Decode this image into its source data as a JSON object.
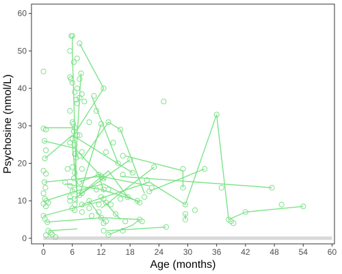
{
  "chart_data": {
    "type": "scatter",
    "xlabel": "Age (months)",
    "ylabel": "Psychosine (nmol/L)",
    "xlim": [
      -2.5,
      60.5
    ],
    "ylim": [
      -1.5,
      62.5
    ],
    "x_ticks": [
      0,
      6,
      12,
      18,
      24,
      30,
      36,
      42,
      48,
      54,
      60
    ],
    "y_ticks": [
      0,
      10,
      20,
      30,
      40,
      50,
      60
    ],
    "grid": false,
    "legend": "none",
    "colors": {
      "points": "#7ee08a",
      "lines": "#6fe07b",
      "reference": "#d9d9d9",
      "axis": "#333333",
      "text": "#4d4d4d"
    },
    "reference_line": {
      "y": 0,
      "x_range": [
        0,
        60
      ]
    },
    "points": [
      [
        0.0,
        44.5
      ],
      [
        0.0,
        29.3
      ],
      [
        0.5,
        29.0
      ],
      [
        0.2,
        26.0
      ],
      [
        0.5,
        23.5
      ],
      [
        0.3,
        21.3
      ],
      [
        0.0,
        18.0
      ],
      [
        0.5,
        17.2
      ],
      [
        0.2,
        15.0
      ],
      [
        0.4,
        13.5
      ],
      [
        0.0,
        12.0
      ],
      [
        0.3,
        10.5
      ],
      [
        0.6,
        10.0
      ],
      [
        1.0,
        9.5
      ],
      [
        0.0,
        9.2
      ],
      [
        0.5,
        8.5
      ],
      [
        0.0,
        6.0
      ],
      [
        0.3,
        5.2
      ],
      [
        0.8,
        4.3
      ],
      [
        1.0,
        2.0
      ],
      [
        1.5,
        1.5
      ],
      [
        1.8,
        1.0
      ],
      [
        0.5,
        0.8
      ],
      [
        2.5,
        0.3
      ],
      [
        5.8,
        54.0
      ],
      [
        6.0,
        54.0
      ],
      [
        5.5,
        50.0
      ],
      [
        6.3,
        47.0
      ],
      [
        5.5,
        43.0
      ],
      [
        5.7,
        42.5
      ],
      [
        6.0,
        41.5
      ],
      [
        6.5,
        39.0
      ],
      [
        6.8,
        37.0
      ],
      [
        5.5,
        34.0
      ],
      [
        6.0,
        31.0
      ],
      [
        6.2,
        30.5
      ],
      [
        6.5,
        29.5
      ],
      [
        6.3,
        28.5
      ],
      [
        7.0,
        27.5
      ],
      [
        6.0,
        26.5
      ],
      [
        6.5,
        25.0
      ],
      [
        5.5,
        25.5
      ],
      [
        6.5,
        22.5
      ],
      [
        6.8,
        21.5
      ],
      [
        6.0,
        19.0
      ],
      [
        5.0,
        18.5
      ],
      [
        6.5,
        17.5
      ],
      [
        6.3,
        16.0
      ],
      [
        4.5,
        15.0
      ],
      [
        5.5,
        14.0
      ],
      [
        6.5,
        13.0
      ],
      [
        6.0,
        12.5
      ],
      [
        5.5,
        11.0
      ],
      [
        6.5,
        10.5
      ],
      [
        5.5,
        10.0
      ],
      [
        6.5,
        9.0
      ],
      [
        6.0,
        8.0
      ],
      [
        6.5,
        7.5
      ],
      [
        7.5,
        52.0
      ],
      [
        7.0,
        48.0
      ],
      [
        7.8,
        44.0
      ],
      [
        7.5,
        42.5
      ],
      [
        7.0,
        40.0
      ],
      [
        8.0,
        38.5
      ],
      [
        7.5,
        37.5
      ],
      [
        7.0,
        36.0
      ],
      [
        8.5,
        36.5
      ],
      [
        9.5,
        31.0
      ],
      [
        7.5,
        27.5
      ],
      [
        8.0,
        23.0
      ],
      [
        7.5,
        22.0
      ],
      [
        8.0,
        18.5
      ],
      [
        7.5,
        15.0
      ],
      [
        8.0,
        12.0
      ],
      [
        7.5,
        11.5
      ],
      [
        9.5,
        10.0
      ],
      [
        8.0,
        9.0
      ],
      [
        9.5,
        8.0
      ],
      [
        8.0,
        7.0
      ],
      [
        10.0,
        6.0
      ],
      [
        10.5,
        38.0
      ],
      [
        11.0,
        34.0
      ],
      [
        12.5,
        40.0
      ],
      [
        13.5,
        31.0
      ],
      [
        12.0,
        30.5
      ],
      [
        11.5,
        17.0
      ],
      [
        12.0,
        16.5
      ],
      [
        12.5,
        16.0
      ],
      [
        11.0,
        13.0
      ],
      [
        12.5,
        13.0
      ],
      [
        13.5,
        13.0
      ],
      [
        12.0,
        11.0
      ],
      [
        12.5,
        10.5
      ],
      [
        11.5,
        9.0
      ],
      [
        13.0,
        9.5
      ],
      [
        11.5,
        7.0
      ],
      [
        12.0,
        5.5
      ],
      [
        13.0,
        4.5
      ],
      [
        12.5,
        4.0
      ],
      [
        12.5,
        2.0
      ],
      [
        13.5,
        0.9
      ],
      [
        13.0,
        23.0
      ],
      [
        14.5,
        25.5
      ],
      [
        16.0,
        29.0
      ],
      [
        16.5,
        22.0
      ],
      [
        15.5,
        20.0
      ],
      [
        16.5,
        17.0
      ],
      [
        18.0,
        21.0
      ],
      [
        18.5,
        17.5
      ],
      [
        17.5,
        11.0
      ],
      [
        16.0,
        10.5
      ],
      [
        15.0,
        6.5
      ],
      [
        14.0,
        9.0
      ],
      [
        17.0,
        4.5
      ],
      [
        16.5,
        2.0
      ],
      [
        19.5,
        10.0
      ],
      [
        20.0,
        9.5
      ],
      [
        20.0,
        5.0
      ],
      [
        20.5,
        4.5
      ],
      [
        22.0,
        12.5
      ],
      [
        21.5,
        15.5
      ],
      [
        23.0,
        19.0
      ],
      [
        22.5,
        13.5
      ],
      [
        21.0,
        11.0
      ],
      [
        25.0,
        36.5
      ],
      [
        25.5,
        3.0
      ],
      [
        29.0,
        18.5
      ],
      [
        29.0,
        13.5
      ],
      [
        29.5,
        9.0
      ],
      [
        29.5,
        6.5
      ],
      [
        29.5,
        5.0
      ],
      [
        31.5,
        7.5
      ],
      [
        33.5,
        18.5
      ],
      [
        36.0,
        33.0
      ],
      [
        37.0,
        13.5
      ],
      [
        38.5,
        5.0
      ],
      [
        39.0,
        4.5
      ],
      [
        39.5,
        4.0
      ],
      [
        42.0,
        7.0
      ],
      [
        47.5,
        13.5
      ],
      [
        49.5,
        9.0
      ],
      [
        54.0,
        8.5
      ]
    ],
    "trajectories": [
      [
        [
          6.0,
          54.0
        ],
        [
          6.0,
          49.5
        ],
        [
          6.5,
          29.0
        ],
        [
          7.0,
          9.5
        ]
      ],
      [
        [
          0.0,
          29.5
        ],
        [
          6.5,
          29.5
        ],
        [
          6.0,
          25.0
        ],
        [
          7.0,
          12.0
        ]
      ],
      [
        [
          7.5,
          52.0
        ],
        [
          12.5,
          40.0
        ],
        [
          7.0,
          29.0
        ]
      ],
      [
        [
          7.8,
          44.0
        ],
        [
          7.0,
          27.0
        ],
        [
          6.5,
          16.5
        ]
      ],
      [
        [
          0.0,
          26.0
        ],
        [
          6.5,
          24.0
        ],
        [
          12.0,
          16.5
        ],
        [
          13.0,
          15.5
        ]
      ],
      [
        [
          0.3,
          21.3
        ],
        [
          6.0,
          27.5
        ],
        [
          18.5,
          17.5
        ]
      ],
      [
        [
          0.2,
          15.0
        ],
        [
          12.0,
          16.5
        ],
        [
          22.0,
          14.0
        ]
      ],
      [
        [
          0.0,
          9.8
        ],
        [
          6.5,
          12.5
        ],
        [
          12.5,
          14.5
        ],
        [
          20.0,
          9.5
        ]
      ],
      [
        [
          0.0,
          6.0
        ],
        [
          6.0,
          8.0
        ],
        [
          12.5,
          10.0
        ],
        [
          16.0,
          5.0
        ]
      ],
      [
        [
          0.5,
          4.3
        ],
        [
          12.5,
          5.5
        ],
        [
          20.0,
          5.0
        ]
      ],
      [
        [
          1.0,
          2.0
        ],
        [
          7.0,
          2.5
        ]
      ],
      [
        [
          8.0,
          21.0
        ],
        [
          13.5,
          31.0
        ],
        [
          16.0,
          29.0
        ],
        [
          21.0,
          12.0
        ]
      ],
      [
        [
          10.0,
          38.0
        ],
        [
          15.5,
          20.0
        ]
      ],
      [
        [
          12.0,
          30.5
        ],
        [
          7.5,
          11.5
        ],
        [
          18.0,
          21.0
        ]
      ],
      [
        [
          4.5,
          14.5
        ],
        [
          12.0,
          13.0
        ],
        [
          19.5,
          10.0
        ]
      ],
      [
        [
          6.5,
          10.5
        ],
        [
          13.5,
          18.0
        ],
        [
          17.5,
          11.0
        ]
      ],
      [
        [
          8.0,
          9.0
        ],
        [
          22.0,
          15.0
        ],
        [
          29.5,
          9.0
        ],
        [
          36.0,
          33.0
        ],
        [
          38.5,
          5.0
        ]
      ],
      [
        [
          13.0,
          2.0
        ],
        [
          25.5,
          3.0
        ]
      ],
      [
        [
          13.5,
          0.9
        ],
        [
          18.5,
          3.5
        ],
        [
          20.0,
          5.0
        ]
      ],
      [
        [
          12.0,
          8.0
        ],
        [
          23.0,
          19.0
        ]
      ],
      [
        [
          17.0,
          22.0
        ],
        [
          29.0,
          18.0
        ],
        [
          29.0,
          13.5
        ]
      ],
      [
        [
          16.0,
          16.5
        ],
        [
          47.5,
          13.5
        ]
      ],
      [
        [
          22.0,
          12.5
        ],
        [
          33.5,
          18.5
        ]
      ],
      [
        [
          29.5,
          6.5
        ],
        [
          29.5,
          5.0
        ]
      ],
      [
        [
          38.5,
          5.0
        ],
        [
          42.0,
          7.0
        ],
        [
          54.0,
          8.5
        ]
      ],
      [
        [
          9.5,
          10.0
        ],
        [
          12.5,
          4.5
        ]
      ],
      [
        [
          7.5,
          15.0
        ],
        [
          11.5,
          17.0
        ],
        [
          12.5,
          12.5
        ]
      ]
    ]
  }
}
